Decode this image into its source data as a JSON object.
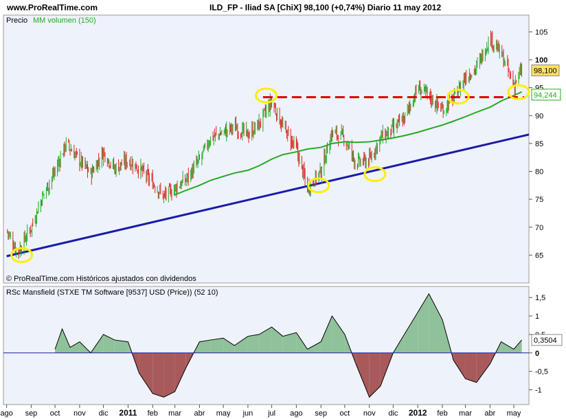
{
  "header": {
    "site": "www.ProRealTime.com",
    "title": "ILD_FP - Iliad SA [ChiX]   98,100 (+0,74%)   Diario  11 may 2012"
  },
  "colors": {
    "candle_up": "#22aa22",
    "candle_down": "#dd2222",
    "moving_average": "#22aa22",
    "trend_line": "#1a1aa8",
    "resistance_line": "#dd0000",
    "highlight_circles": "#ffee00",
    "rs_positive_fill": "#8fc29a",
    "rs_negative_fill": "#a85a5a",
    "last_price_badge": "#ffe066",
    "ma_badge": "#ffffff"
  },
  "chart_data": [
    {
      "type": "candlestick",
      "legend": {
        "price_label": "Precio",
        "ma_label": "MM volumen (150)"
      },
      "footer": "© ProRealTime.com  Históricos ajustados con dividendos",
      "ylim": [
        60,
        108
      ],
      "yticks": [
        "105",
        "100",
        "95",
        "90",
        "85",
        "80",
        "75",
        "70",
        "65"
      ],
      "ytick_values": [
        105,
        100,
        95,
        90,
        85,
        80,
        75,
        70,
        65
      ],
      "last_price_label": "98,100",
      "last_price": 98.1,
      "ma_last_label": "94,244",
      "ma_last": 94.244,
      "x_dates": [
        "2010-08-01",
        "2010-08-15",
        "2010-09-01",
        "2010-09-15",
        "2010-10-01",
        "2010-10-15",
        "2010-11-01",
        "2010-11-15",
        "2010-12-01",
        "2010-12-15",
        "2011-01-01",
        "2011-01-15",
        "2011-02-01",
        "2011-02-15",
        "2011-03-01",
        "2011-03-15",
        "2011-04-01",
        "2011-04-15",
        "2011-05-01",
        "2011-05-15",
        "2011-06-01",
        "2011-06-15",
        "2011-07-01",
        "2011-07-15",
        "2011-08-01",
        "2011-08-15",
        "2011-09-01",
        "2011-09-15",
        "2011-10-01",
        "2011-10-15",
        "2011-11-01",
        "2011-11-15",
        "2011-12-01",
        "2011-12-15",
        "2012-01-01",
        "2012-01-15",
        "2012-02-01",
        "2012-02-15",
        "2012-03-01",
        "2012-03-15",
        "2012-04-01",
        "2012-04-15",
        "2012-05-01",
        "2012-05-11"
      ],
      "close": [
        69.5,
        65.5,
        70.0,
        75.5,
        80.0,
        85.0,
        82.0,
        79.5,
        83.5,
        80.5,
        82.0,
        80.5,
        78.0,
        75.5,
        77.0,
        78.5,
        82.0,
        86.0,
        87.0,
        88.0,
        86.5,
        88.5,
        92.5,
        88.0,
        84.0,
        77.0,
        80.0,
        87.0,
        86.0,
        81.5,
        82.0,
        86.0,
        87.5,
        89.5,
        95.0,
        93.5,
        91.0,
        93.0,
        97.0,
        98.5,
        104.0,
        101.0,
        95.5,
        98.1
      ],
      "moving_average": [
        null,
        null,
        null,
        null,
        null,
        null,
        null,
        null,
        null,
        null,
        null,
        null,
        null,
        null,
        75.8,
        76.6,
        77.5,
        78.4,
        79.1,
        79.7,
        80.2,
        81.0,
        82.2,
        83.0,
        83.5,
        84.0,
        84.3,
        85.0,
        85.3,
        85.2,
        85.3,
        85.6,
        86.0,
        86.4,
        87.0,
        87.6,
        88.3,
        89.0,
        89.8,
        90.6,
        91.5,
        92.6,
        93.6,
        94.244
      ],
      "trend_line": {
        "x": [
          "2010-08-01",
          "2012-05-20"
        ],
        "y": [
          64.8,
          86.6
        ]
      },
      "resistance_line": {
        "x": [
          "2011-06-20",
          "2012-05-14"
        ],
        "y": [
          93.3,
          93.3
        ]
      },
      "highlights": [
        {
          "date": "2010-08-20",
          "value": 65.0
        },
        {
          "date": "2011-06-24",
          "value": 93.6
        },
        {
          "date": "2011-08-29",
          "value": 77.5
        },
        {
          "date": "2011-11-08",
          "value": 79.5
        },
        {
          "date": "2012-02-21",
          "value": 93.4
        },
        {
          "date": "2012-05-07",
          "value": 94.2
        }
      ],
      "xaxis": {
        "labels": [
          "ago",
          "sep",
          "oct",
          "nov",
          "dic",
          "2011",
          "feb",
          "mar",
          "abr",
          "may",
          "jun",
          "jul",
          "ago",
          "sep",
          "oct",
          "nov",
          "dic",
          "2012",
          "feb",
          "mar",
          "abr",
          "may"
        ],
        "dates": [
          "2010-08-01",
          "2010-09-01",
          "2010-10-01",
          "2010-11-01",
          "2010-12-01",
          "2011-01-01",
          "2011-02-01",
          "2011-03-01",
          "2011-04-01",
          "2011-05-01",
          "2011-06-01",
          "2011-07-01",
          "2011-08-01",
          "2011-09-01",
          "2011-10-01",
          "2011-11-01",
          "2011-12-01",
          "2012-01-01",
          "2012-02-01",
          "2012-03-01",
          "2012-04-01",
          "2012-05-01"
        ]
      }
    },
    {
      "type": "area",
      "title": "RSc Mansfield (STXE TM Software [9537] USD (Price)) (52 10)",
      "ylim": [
        -1.4,
        1.8
      ],
      "yticks": [
        "1,5",
        "1",
        "0,5",
        "0",
        "-0,5",
        "-1"
      ],
      "ytick_values": [
        1.5,
        1,
        0.5,
        0,
        -0.5,
        -1
      ],
      "last_value_label": "0,3504",
      "last_value": 0.3504,
      "x_dates": [
        "2010-10-01",
        "2010-10-10",
        "2010-10-20",
        "2010-11-01",
        "2010-11-15",
        "2010-12-01",
        "2010-12-15",
        "2011-01-01",
        "2011-01-15",
        "2011-02-01",
        "2011-02-15",
        "2011-03-01",
        "2011-03-15",
        "2011-04-01",
        "2011-04-15",
        "2011-05-01",
        "2011-05-15",
        "2011-06-01",
        "2011-06-15",
        "2011-07-01",
        "2011-07-15",
        "2011-08-01",
        "2011-08-15",
        "2011-09-01",
        "2011-09-15",
        "2011-10-01",
        "2011-10-15",
        "2011-11-01",
        "2011-11-15",
        "2011-12-01",
        "2011-12-15",
        "2012-01-01",
        "2012-01-15",
        "2012-02-01",
        "2012-02-15",
        "2012-03-01",
        "2012-03-15",
        "2012-04-01",
        "2012-04-15",
        "2012-05-01",
        "2012-05-11"
      ],
      "values": [
        0.1,
        0.65,
        0.15,
        0.3,
        0.0,
        0.5,
        0.35,
        0.3,
        -0.55,
        -1.1,
        -1.2,
        -1.05,
        -0.4,
        0.3,
        0.35,
        0.4,
        0.2,
        0.45,
        0.5,
        0.7,
        0.45,
        0.55,
        0.1,
        0.3,
        1.0,
        0.5,
        -0.3,
        -1.2,
        -0.9,
        0.0,
        0.5,
        1.1,
        1.6,
        0.9,
        -0.2,
        -0.7,
        -0.8,
        -0.3,
        0.3,
        0.1,
        0.3504
      ],
      "xaxis_labels": [
        "ago",
        "sep",
        "oct",
        "nov",
        "dic",
        "2011",
        "feb",
        "mar",
        "abr",
        "may",
        "jun",
        "jul",
        "ago",
        "sep",
        "oct",
        "nov",
        "dic",
        "2012",
        "feb",
        "mar",
        "abr",
        "may"
      ]
    }
  ]
}
